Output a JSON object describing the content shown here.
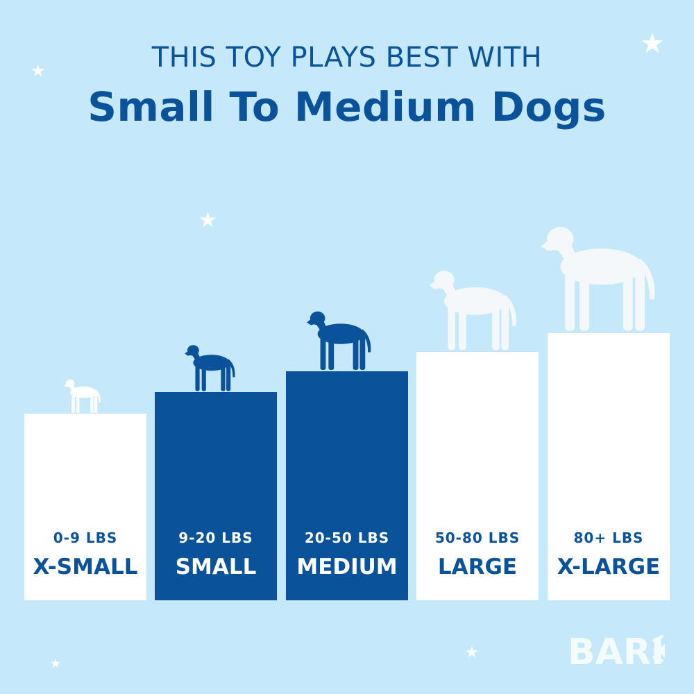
{
  "header": {
    "subtitle": "THIS TOY PLAYS BEST WITH",
    "title": "Small To Medium Dogs"
  },
  "colors": {
    "background": "#c5e8fb",
    "accent": "#0a539b",
    "light": "#ffffff"
  },
  "sizes": [
    {
      "weight": "0-9 LBS",
      "label": "X-SMALL",
      "highlighted": false,
      "icon": "chihuahua-silhouette"
    },
    {
      "weight": "9-20 LBS",
      "label": "SMALL",
      "highlighted": true,
      "icon": "scottish-terrier-silhouette"
    },
    {
      "weight": "20-50 LBS",
      "label": "MEDIUM",
      "highlighted": true,
      "icon": "labrador-silhouette"
    },
    {
      "weight": "50-80 LBS",
      "label": "LARGE",
      "highlighted": false,
      "icon": "golden-retriever-silhouette"
    },
    {
      "weight": "80+ LBS",
      "label": "X-LARGE",
      "highlighted": false,
      "icon": "great-dane-silhouette"
    }
  ],
  "logo": {
    "text": "BARK"
  }
}
